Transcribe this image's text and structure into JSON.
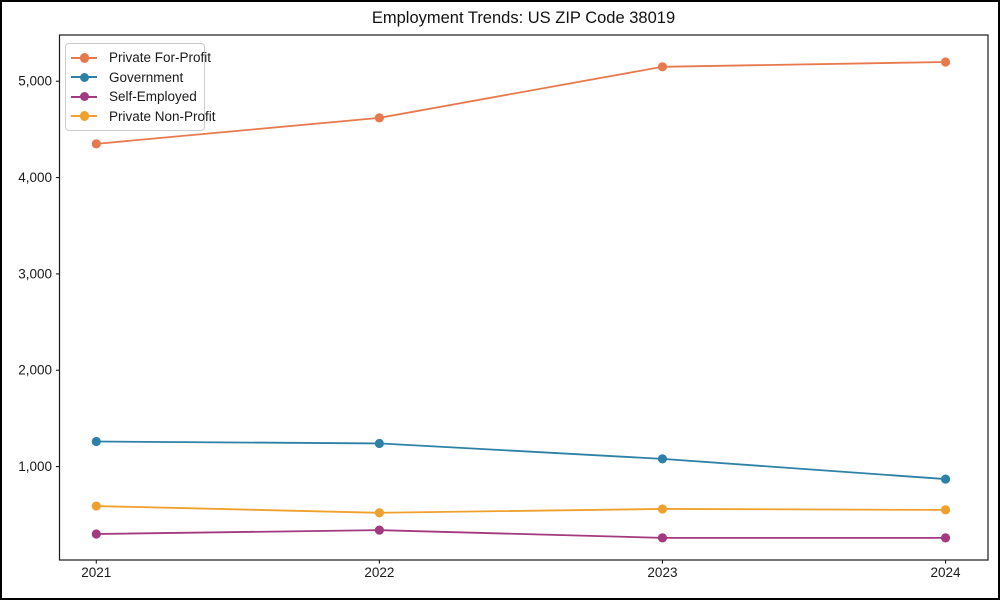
{
  "chart_data": {
    "type": "line",
    "title": "Employment Trends: US ZIP Code 38019",
    "x": [
      2021,
      2022,
      2023,
      2024
    ],
    "x_tick_labels": [
      "2021",
      "2022",
      "2023",
      "2024"
    ],
    "y_ticks": [
      1000,
      2000,
      3000,
      4000,
      5000
    ],
    "y_tick_labels": [
      "1,000",
      "2,000",
      "3,000",
      "4,000",
      "5,000"
    ],
    "xlim": [
      2020.87,
      2024.15
    ],
    "ylim": [
      30,
      5480
    ],
    "grid": false,
    "legend_position": "upper-left",
    "marker": "circle",
    "axis_color": "#1a1a1a",
    "series": [
      {
        "name": "Private For-Profit",
        "color": "#e8794e",
        "values": [
          4350,
          4620,
          5150,
          5200
        ]
      },
      {
        "name": "Government",
        "color": "#2e81a6",
        "values": [
          1260,
          1240,
          1080,
          870
        ]
      },
      {
        "name": "Self-Employed",
        "color": "#a3397f",
        "values": [
          300,
          340,
          260,
          260
        ]
      },
      {
        "name": "Private Non-Profit",
        "color": "#f0a02d",
        "values": [
          590,
          520,
          560,
          550
        ]
      }
    ]
  }
}
